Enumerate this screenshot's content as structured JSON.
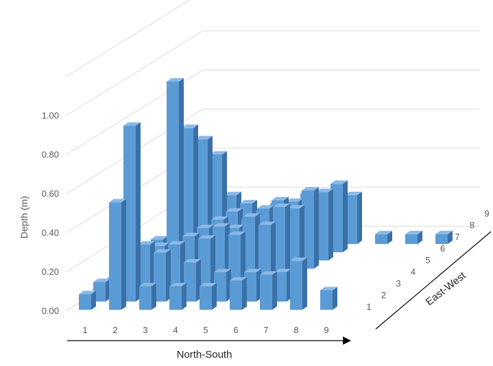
{
  "chart_data": {
    "type": "bar3d",
    "ylabel": "Depth (m)",
    "xlabel": "North-South",
    "zlabel": "East-West",
    "ylim": [
      0,
      1.2
    ],
    "y_ticks": [
      "0.00",
      "0.20",
      "0.40",
      "0.60",
      "0.80",
      "1.00"
    ],
    "x_categories": [
      "1",
      "2",
      "3",
      "4",
      "5",
      "6",
      "7",
      "8",
      "9"
    ],
    "z_categories": [
      "1",
      "2",
      "3",
      "4",
      "5",
      "6",
      "7",
      "8",
      "9"
    ],
    "grid": true,
    "values": [
      [
        0.08,
        0.55,
        0.12,
        0.12,
        0.12,
        0.15,
        0.18,
        0.25,
        0.1
      ],
      [
        0.1,
        0.9,
        0.25,
        0.2,
        0.15,
        0.15,
        0.15,
        0.0,
        0.0
      ],
      [
        0.08,
        0.25,
        0.25,
        0.28,
        0.3,
        0.35,
        0.0,
        0.0,
        0.0
      ],
      [
        0.15,
        0.2,
        0.25,
        0.3,
        0.35,
        0.4,
        0.0,
        0.0,
        0.0
      ],
      [
        0.1,
        1.0,
        0.25,
        0.25,
        0.35,
        0.35,
        0.0,
        0.0,
        0.0
      ],
      [
        0.15,
        0.72,
        0.25,
        0.25,
        0.35,
        0.4,
        0.0,
        0.0,
        0.0
      ],
      [
        0.1,
        0.62,
        0.25,
        0.25,
        0.3,
        0.35,
        0.0,
        0.0,
        0.0
      ],
      [
        0.1,
        0.5,
        0.25,
        0.25,
        0.3,
        0.35,
        0.0,
        0.0,
        0.0
      ],
      [
        0.08,
        0.25,
        0.12,
        0.15,
        0.2,
        0.25,
        0.05,
        0.05,
        0.05
      ]
    ]
  },
  "colors": {
    "bar_front": "#5b9bd5",
    "bar_top": "#8cb9e5",
    "bar_side": "#3a70a8",
    "grid": "#d9d9d9",
    "axis": "#000000"
  }
}
